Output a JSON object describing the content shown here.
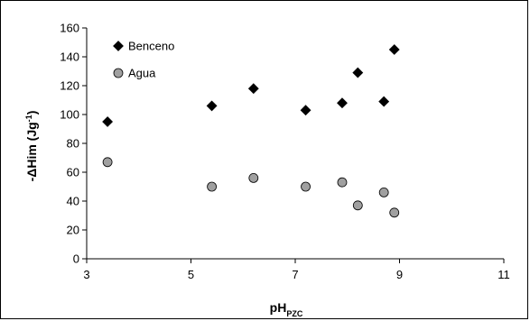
{
  "chart_data": {
    "type": "scatter",
    "xlabel": "pH",
    "xlabel_subscript": "PZC",
    "ylabel_main": "-ΔHim (Jg",
    "ylabel_sup": "-1",
    "ylabel_close": ")",
    "xlim": [
      3,
      11
    ],
    "ylim": [
      0,
      160
    ],
    "xticks": [
      3,
      5,
      7,
      9,
      11
    ],
    "yticks": [
      0,
      20,
      40,
      60,
      80,
      100,
      120,
      140,
      160
    ],
    "grid": false,
    "legend_position": "top-left",
    "series": [
      {
        "name": "Benceno",
        "marker": "diamond",
        "color": "#000000",
        "points": [
          {
            "x": 3.4,
            "y": 95
          },
          {
            "x": 5.4,
            "y": 106
          },
          {
            "x": 6.2,
            "y": 118
          },
          {
            "x": 7.2,
            "y": 103
          },
          {
            "x": 7.9,
            "y": 108
          },
          {
            "x": 8.2,
            "y": 129
          },
          {
            "x": 8.7,
            "y": 109
          },
          {
            "x": 8.9,
            "y": 145
          }
        ]
      },
      {
        "name": "Agua",
        "marker": "circle",
        "color": "#a0a0a0",
        "points": [
          {
            "x": 3.4,
            "y": 67
          },
          {
            "x": 5.4,
            "y": 50
          },
          {
            "x": 6.2,
            "y": 56
          },
          {
            "x": 7.2,
            "y": 50
          },
          {
            "x": 7.9,
            "y": 53
          },
          {
            "x": 8.2,
            "y": 37
          },
          {
            "x": 8.7,
            "y": 46
          },
          {
            "x": 8.9,
            "y": 32
          }
        ]
      }
    ]
  }
}
